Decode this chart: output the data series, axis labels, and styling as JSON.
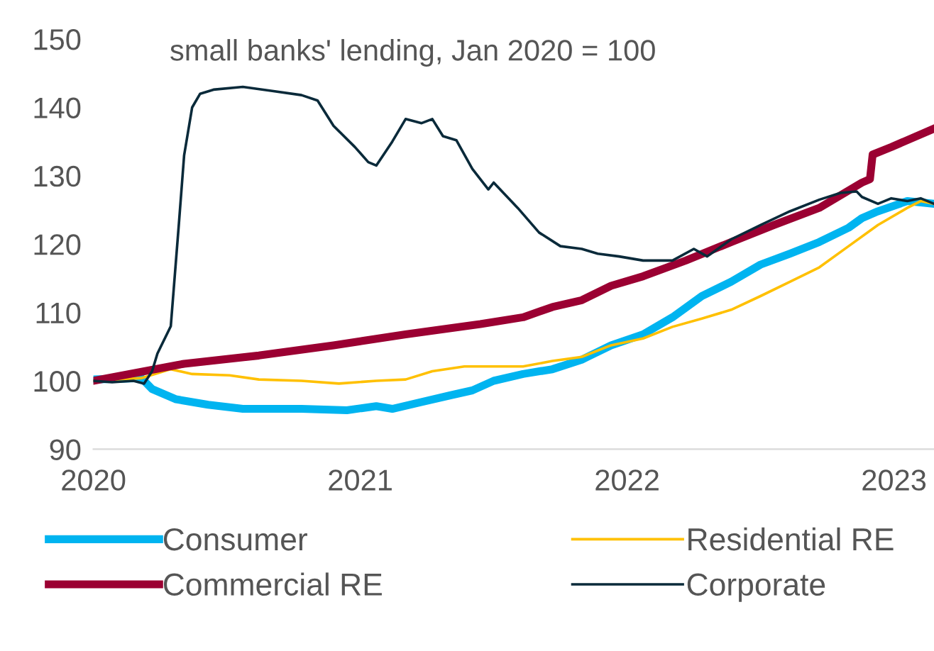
{
  "chart_data": {
    "type": "line",
    "title": "small banks' lending, Jan 2020 = 100",
    "xlim": [
      2020,
      2023.15
    ],
    "xticks": [
      2020,
      2021,
      2022,
      2023
    ],
    "ylim": [
      90,
      150
    ],
    "yticks": [
      90,
      100,
      110,
      120,
      130,
      140,
      150
    ],
    "grid": false,
    "legend": "bottom",
    "marker": "none",
    "line_style": "solid",
    "series": [
      {
        "name": "Consumer",
        "color": "#00b4f0",
        "x": [
          2020,
          2020.18,
          2020.22,
          2020.31,
          2020.43,
          2020.56,
          2020.78,
          2020.95,
          2021.06,
          2021.12,
          2021.23,
          2021.34,
          2021.42,
          2021.5,
          2021.61,
          2021.72,
          2021.83,
          2021.94,
          2022.06,
          2022.17,
          2022.28,
          2022.39,
          2022.5,
          2022.61,
          2022.72,
          2022.83,
          2022.88,
          2022.94,
          2023.05,
          2023.15
        ],
        "values": [
          100.2,
          100.4,
          98.8,
          97.3,
          96.5,
          95.9,
          95.9,
          95.7,
          96.3,
          95.9,
          96.9,
          97.9,
          98.6,
          100,
          101,
          101.7,
          103.1,
          105.2,
          106.8,
          109.3,
          112.4,
          114.5,
          117,
          118.6,
          120.3,
          122.4,
          123.8,
          124.8,
          126.3,
          125.9
        ]
      },
      {
        "name": "Residential RE",
        "color": "#ffc000",
        "x": [
          2020,
          2020.18,
          2020.29,
          2020.37,
          2020.51,
          2020.62,
          2020.78,
          2020.92,
          2021.06,
          2021.17,
          2021.27,
          2021.39,
          2021.61,
          2021.72,
          2021.83,
          2021.94,
          2022.06,
          2022.17,
          2022.28,
          2022.39,
          2022.5,
          2022.61,
          2022.72,
          2022.83,
          2022.94,
          2023.05,
          2023.1,
          2023.15
        ],
        "values": [
          100,
          100.4,
          101.7,
          101,
          100.8,
          100.2,
          100,
          99.6,
          100,
          100.2,
          101.4,
          102.1,
          102.1,
          102.9,
          103.5,
          105.2,
          106.2,
          107.9,
          109.1,
          110.4,
          112.4,
          114.5,
          116.6,
          119.7,
          122.8,
          125.3,
          126.3,
          125.9
        ]
      },
      {
        "name": "Commercial RE",
        "color": "#9b0032",
        "x": [
          2020,
          2020.34,
          2020.62,
          2020.9,
          2021.17,
          2021.45,
          2021.61,
          2021.72,
          2021.83,
          2021.94,
          2022.06,
          2022.22,
          2022.39,
          2022.55,
          2022.72,
          2022.88,
          2022.91,
          2022.92,
          2022.99,
          2023.15
        ],
        "values": [
          100,
          102.5,
          103.7,
          105.2,
          106.8,
          108.3,
          109.3,
          110.8,
          111.8,
          113.9,
          115.3,
          117.6,
          120.3,
          122.8,
          125.3,
          129,
          129.5,
          133.1,
          134.2,
          136.9
        ]
      },
      {
        "name": "Corporate",
        "color": "#0a2a3a",
        "x": [
          2020,
          2020.07,
          2020.15,
          2020.19,
          2020.22,
          2020.24,
          2020.29,
          2020.32,
          2020.34,
          2020.37,
          2020.4,
          2020.45,
          2020.56,
          2020.67,
          2020.78,
          2020.84,
          2020.9,
          2020.98,
          2021.03,
          2021.06,
          2021.12,
          2021.17,
          2021.23,
          2021.27,
          2021.31,
          2021.36,
          2021.42,
          2021.48,
          2021.5,
          2021.59,
          2021.67,
          2021.75,
          2021.83,
          2021.89,
          2021.97,
          2022.06,
          2022.17,
          2022.25,
          2022.3,
          2022.39,
          2022.5,
          2022.61,
          2022.72,
          2022.8,
          2022.86,
          2022.88,
          2022.94,
          2022.99,
          2023.05,
          2023.1,
          2023.15
        ],
        "values": [
          100,
          99.8,
          100,
          99.6,
          101.4,
          104,
          108,
          122.8,
          133,
          140,
          142,
          142.6,
          143,
          142.4,
          141.8,
          141,
          137.3,
          134.2,
          132,
          131.5,
          135,
          138.3,
          137.7,
          138.3,
          135.8,
          135.2,
          131,
          128,
          129,
          125.3,
          121.7,
          119.7,
          119.3,
          118.6,
          118.2,
          117.6,
          117.6,
          119.3,
          118.2,
          120.7,
          122.8,
          124.8,
          126.5,
          127.5,
          127.7,
          126.9,
          125.9,
          126.7,
          126.3,
          126.7,
          125.9
        ]
      }
    ]
  }
}
